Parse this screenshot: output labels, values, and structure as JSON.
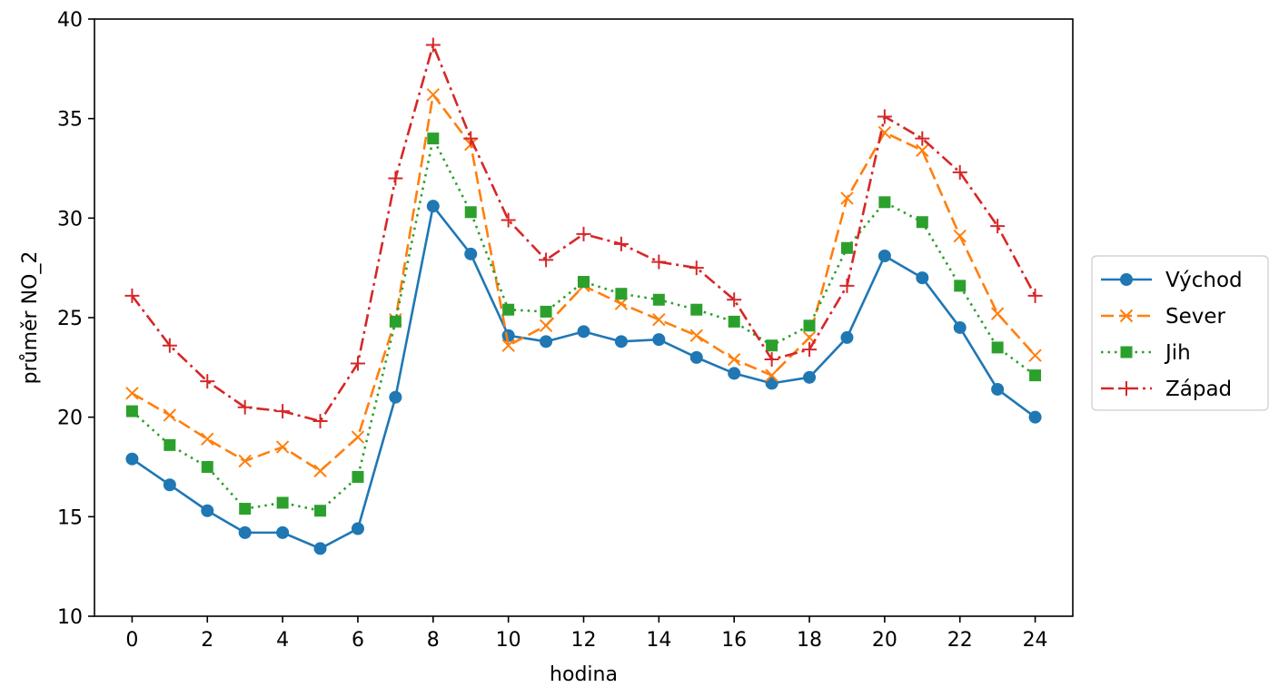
{
  "chart_data": {
    "type": "line",
    "title": "",
    "xlabel": "hodina",
    "ylabel": "průměr NO_2",
    "xlim": [
      -1,
      25
    ],
    "ylim": [
      10,
      40
    ],
    "xticks": [
      0,
      2,
      4,
      6,
      8,
      10,
      12,
      14,
      16,
      18,
      20,
      22,
      24
    ],
    "yticks": [
      10,
      15,
      20,
      25,
      30,
      35,
      40
    ],
    "grid": false,
    "legend_position": "right",
    "x": [
      0,
      1,
      2,
      3,
      4,
      5,
      6,
      7,
      8,
      9,
      10,
      11,
      12,
      13,
      14,
      15,
      16,
      17,
      18,
      19,
      20,
      21,
      22,
      23,
      24
    ],
    "series": [
      {
        "name": "Východ",
        "color": "#1f77b4",
        "marker": "circle",
        "linestyle": "solid",
        "values": [
          17.9,
          16.6,
          15.3,
          14.2,
          14.2,
          13.4,
          14.4,
          21.0,
          30.6,
          28.2,
          24.1,
          23.8,
          24.3,
          23.8,
          23.9,
          23.0,
          22.2,
          21.7,
          22.0,
          24.0,
          28.1,
          27.0,
          24.5,
          21.4,
          20.0
        ]
      },
      {
        "name": "Sever",
        "color": "#ff7f0e",
        "marker": "x",
        "linestyle": "dashed",
        "values": [
          21.2,
          20.1,
          18.9,
          17.8,
          18.5,
          17.3,
          19.0,
          24.9,
          36.2,
          33.7,
          23.6,
          24.6,
          26.6,
          25.7,
          24.9,
          24.1,
          22.9,
          22.1,
          24.0,
          31.0,
          34.3,
          33.4,
          29.1,
          25.2,
          23.1
        ]
      },
      {
        "name": "Jih",
        "color": "#2ca02c",
        "marker": "square",
        "linestyle": "dotted",
        "values": [
          20.3,
          18.6,
          17.5,
          15.4,
          15.7,
          15.3,
          17.0,
          24.8,
          34.0,
          30.3,
          25.4,
          25.3,
          26.8,
          26.2,
          25.9,
          25.4,
          24.8,
          23.6,
          24.6,
          28.5,
          30.8,
          29.8,
          26.6,
          23.5,
          22.1
        ]
      },
      {
        "name": "Západ",
        "color": "#d62728",
        "marker": "plus",
        "linestyle": "dashdot",
        "values": [
          26.1,
          23.6,
          21.8,
          20.5,
          20.3,
          19.8,
          22.7,
          32.0,
          38.7,
          34.0,
          29.9,
          27.9,
          29.2,
          28.7,
          27.8,
          27.5,
          25.9,
          22.9,
          23.4,
          26.6,
          35.1,
          34.0,
          32.3,
          29.6,
          26.1
        ]
      }
    ]
  }
}
